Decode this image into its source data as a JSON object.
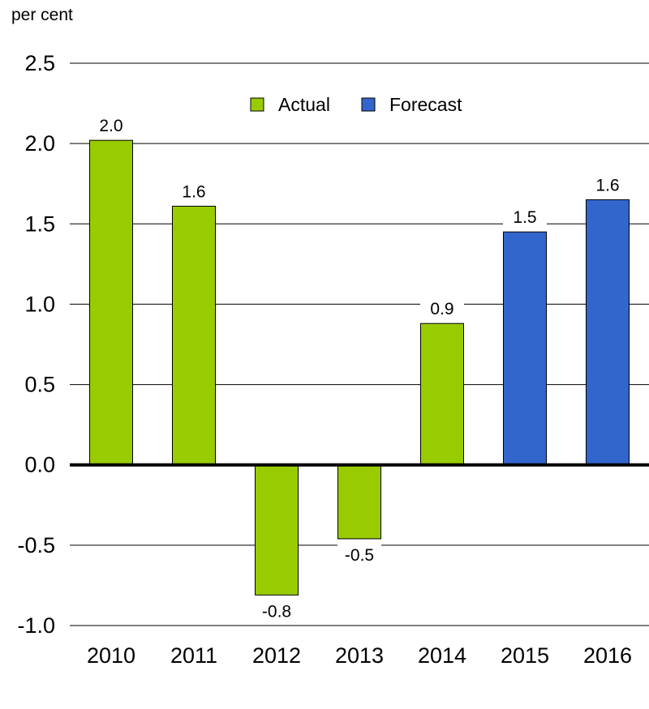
{
  "chart_data": {
    "type": "bar",
    "ylabel": "per cent",
    "categories": [
      "2010",
      "2011",
      "2012",
      "2013",
      "2014",
      "2015",
      "2016"
    ],
    "values": [
      2.02,
      1.61,
      -0.81,
      -0.46,
      0.88,
      1.45,
      1.65
    ],
    "data_labels": [
      "2.0",
      "1.6",
      "-0.8",
      "-0.5",
      "0.9",
      "1.5",
      "1.6"
    ],
    "bar_series": [
      "Actual",
      "Actual",
      "Actual",
      "Actual",
      "Actual",
      "Forecast",
      "Forecast"
    ],
    "series": [
      {
        "name": "Actual",
        "color": "#99cc00"
      },
      {
        "name": "Forecast",
        "color": "#3366cc"
      }
    ],
    "ylim": [
      -1.0,
      2.5
    ],
    "yticks": [
      "-1.0",
      "-0.5",
      "0.0",
      "0.5",
      "1.0",
      "1.5",
      "2.0",
      "2.5"
    ],
    "grid": true,
    "legend_position": "top-center"
  }
}
